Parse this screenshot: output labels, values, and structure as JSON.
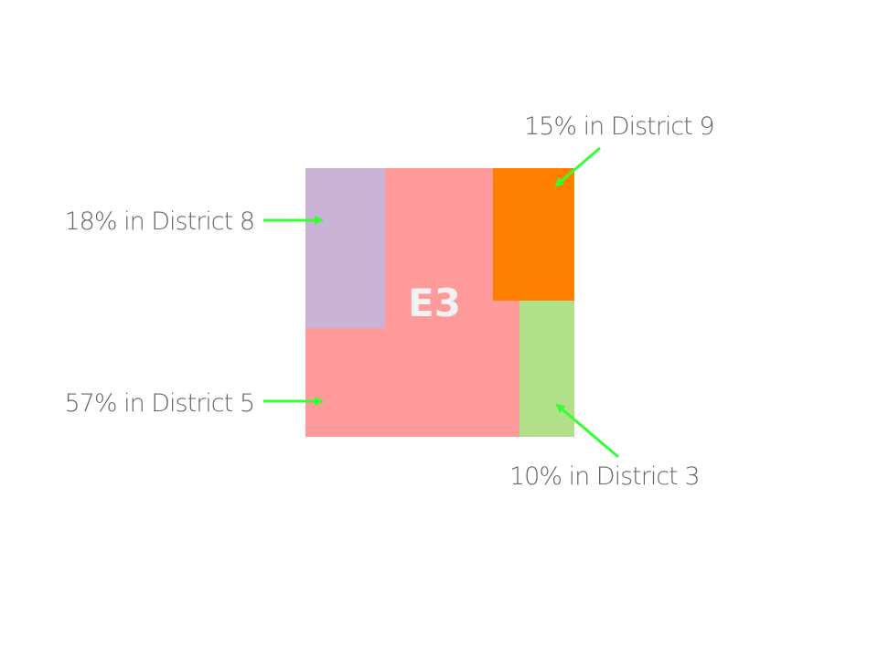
{
  "diagram": {
    "center_label": "E3",
    "colors": {
      "district_5": "#fe9a9a",
      "district_8": "#cab2d6",
      "district_9": "#ff7f00",
      "district_3": "#b2df8a",
      "arrow": "#33ff33",
      "label_text": "#666666",
      "center_label": "#f2f2f2"
    },
    "regions": [
      {
        "district": "District 5",
        "share_percent": 57,
        "label": "57% in District 5"
      },
      {
        "district": "District 8",
        "share_percent": 18,
        "label": "18% in District 8"
      },
      {
        "district": "District 9",
        "share_percent": 15,
        "label": "15% in District 9"
      },
      {
        "district": "District 3",
        "share_percent": 10,
        "label": "10% in District 3"
      }
    ]
  }
}
